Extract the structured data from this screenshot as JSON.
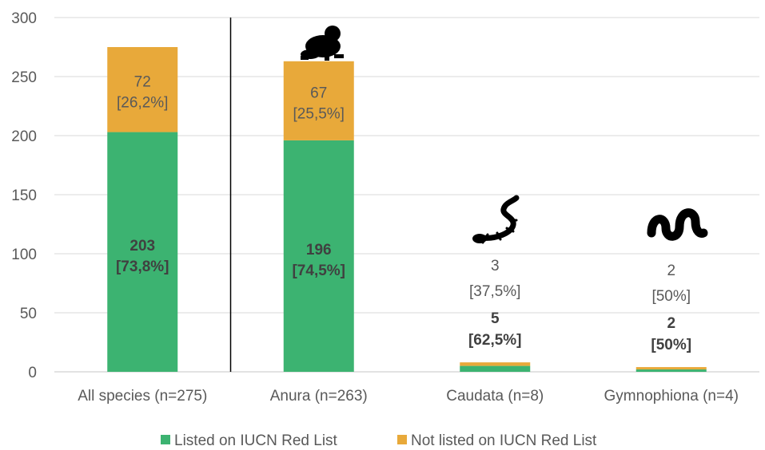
{
  "chart_data": {
    "type": "bar",
    "stacked": true,
    "categories": [
      "All species (n=275)",
      "Anura (n=263)",
      "Caudata (n=8)",
      "Gymnophiona (n=4)"
    ],
    "series": [
      {
        "name": "Listed on IUCN Red List",
        "color": "#3cb371",
        "values": [
          203,
          196,
          5,
          2
        ],
        "labels": [
          "203",
          "196",
          "5",
          "2"
        ],
        "pct_labels": [
          "[73,8%]",
          "[74,5%]",
          "[62,5%]",
          "[50%]"
        ]
      },
      {
        "name": "Not listed on IUCN Red List",
        "color": "#e8a93a",
        "values": [
          72,
          67,
          3,
          2
        ],
        "labels": [
          "72",
          "67",
          "3",
          "2"
        ],
        "pct_labels": [
          "[26,2%]",
          "[25,5%]",
          "[37,5%]",
          "[50%]"
        ]
      }
    ],
    "y_ticks": [
      "0",
      "50",
      "100",
      "150",
      "200",
      "250",
      "300"
    ],
    "ylim": [
      0,
      300
    ],
    "grid": true,
    "legend": "bottom-center",
    "separator_after_category": 0,
    "category_icons": [
      "",
      "frog-icon",
      "salamander-icon",
      "caecilian-icon"
    ]
  }
}
